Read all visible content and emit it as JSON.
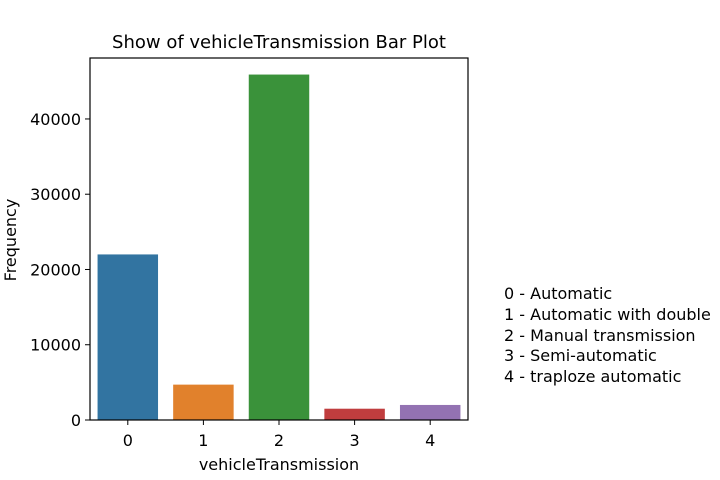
{
  "chart_data": {
    "type": "bar",
    "title": "Show of vehicleTransmission Bar Plot",
    "xlabel": "vehicleTransmission",
    "ylabel": "Frequency",
    "categories": [
      "0",
      "1",
      "2",
      "3",
      "4"
    ],
    "values": [
      22000,
      4700,
      45900,
      1500,
      2000
    ],
    "colors": [
      "#3274a1",
      "#e1812c",
      "#3a923a",
      "#c03d3e",
      "#9372b2"
    ],
    "ylim": [
      0,
      48100
    ],
    "yticks": [
      0,
      10000,
      20000,
      30000,
      40000
    ],
    "ytick_labels": [
      "0",
      "10000",
      "20000",
      "30000",
      "40000"
    ],
    "grid": false,
    "legend_placement": "right",
    "legend_lines": [
      "0 - Automatic",
      "1 - Automatic with double",
      "2 - Manual transmission",
      "3 - Semi-automatic",
      "4 - traploze automatic"
    ]
  }
}
